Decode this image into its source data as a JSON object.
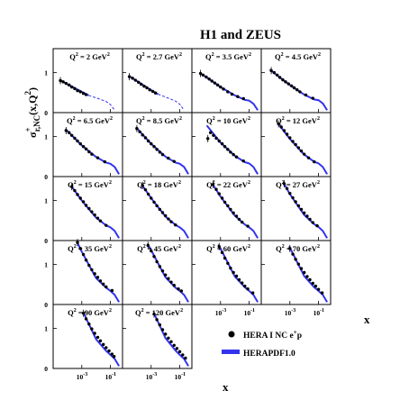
{
  "chart_data": {
    "type": "scatter",
    "title": "H1 and ZEUS",
    "ylabel": "σ+r,NC(x,Q2)",
    "xlabel": "x",
    "xscale": "log",
    "xlim": [
      1e-05,
      0.7
    ],
    "ylim": [
      0,
      1.6
    ],
    "y_ticks": [
      "0",
      "1"
    ],
    "x_ticks": [
      "10-3",
      "10-1"
    ],
    "legend": {
      "placement": "bottom-right",
      "entries": [
        {
          "marker": "dot",
          "label": "HERA I NC e+p"
        },
        {
          "marker": "line",
          "label": "HERAPDF1.0"
        }
      ]
    },
    "colors": {
      "data": "#000000",
      "fit": "#3333ee"
    },
    "panels": [
      {
        "q2": "Q2 = 2 GeV2",
        "label_main": "Q",
        "label_mid": " = 2 GeV",
        "fit_solid_until": 0.003,
        "x": [
          3.2e-05,
          5e-05,
          8e-05,
          0.00013,
          0.0002,
          0.00032,
          0.0005,
          0.0008,
          0.0013,
          0.002
        ],
        "y": [
          0.8,
          0.77,
          0.73,
          0.69,
          0.64,
          0.6,
          0.55,
          0.52,
          0.48,
          0.45
        ],
        "fit_x": [
          2.8e-05,
          0.0001,
          0.001,
          0.003,
          0.01,
          0.05,
          0.1,
          0.2
        ],
        "fit_y": [
          0.82,
          0.71,
          0.52,
          0.43,
          0.37,
          0.28,
          0.2,
          0.06
        ]
      },
      {
        "q2": "Q2 = 2.7 GeV2",
        "label_main": "Q",
        "label_mid": " = 2.7 GeV",
        "fit_solid_until": 0.003,
        "x": [
          3e-05,
          5e-05,
          8e-05,
          0.00013,
          0.0002,
          0.00032,
          0.0005,
          0.0008,
          0.0013,
          0.002
        ],
        "y": [
          0.9,
          0.86,
          0.81,
          0.76,
          0.71,
          0.66,
          0.62,
          0.57,
          0.53,
          0.49
        ],
        "fit_x": [
          2.8e-05,
          0.0001,
          0.001,
          0.003,
          0.01,
          0.05,
          0.1,
          0.2
        ],
        "fit_y": [
          0.92,
          0.79,
          0.56,
          0.46,
          0.39,
          0.29,
          0.21,
          0.06
        ]
      },
      {
        "q2": "Q2 = 3.5 GeV2",
        "label_main": "Q",
        "label_mid": " = 3.5 GeV",
        "x": [
          4e-05,
          6e-05,
          0.0001,
          0.00016,
          0.00025,
          0.0004,
          0.00063,
          0.001,
          0.0016,
          0.0032,
          0.0063,
          0.0158,
          0.04
        ],
        "y": [
          0.98,
          0.94,
          0.89,
          0.84,
          0.79,
          0.74,
          0.69,
          0.64,
          0.59,
          0.52,
          0.46,
          0.4,
          0.35
        ],
        "fit_x": [
          3.5e-05,
          0.0001,
          0.001,
          0.01,
          0.05,
          0.1,
          0.2,
          0.4
        ],
        "fit_y": [
          0.99,
          0.89,
          0.64,
          0.43,
          0.32,
          0.3,
          0.22,
          0.06
        ]
      },
      {
        "q2": "Q2 = 4.5 GeV2",
        "label_main": "Q",
        "label_mid": " = 4.5 GeV",
        "x": [
          5e-05,
          8e-05,
          0.00013,
          0.0002,
          0.00032,
          0.0005,
          0.0008,
          0.0013,
          0.002,
          0.0032,
          0.005,
          0.013,
          0.04
        ],
        "y": [
          1.05,
          1.0,
          0.94,
          0.88,
          0.82,
          0.77,
          0.72,
          0.67,
          0.62,
          0.57,
          0.52,
          0.44,
          0.36
        ],
        "fit_x": [
          4e-05,
          0.0001,
          0.001,
          0.01,
          0.05,
          0.1,
          0.2,
          0.4
        ],
        "fit_y": [
          1.08,
          0.96,
          0.69,
          0.45,
          0.33,
          0.31,
          0.23,
          0.06
        ]
      },
      {
        "q2": "Q2 = 6.5 GeV2",
        "label_main": "Q",
        "label_mid": " = 6.5 GeV",
        "x": [
          8e-05,
          0.00013,
          0.0002,
          0.00032,
          0.0005,
          0.0008,
          0.0013,
          0.002,
          0.0032,
          0.005,
          0.013,
          0.04
        ],
        "y": [
          1.15,
          1.1,
          1.03,
          0.96,
          0.89,
          0.82,
          0.75,
          0.69,
          0.62,
          0.56,
          0.47,
          0.37
        ],
        "fit_x": [
          7e-05,
          0.0001,
          0.001,
          0.01,
          0.05,
          0.1,
          0.2,
          0.4
        ],
        "fit_y": [
          1.19,
          1.14,
          0.78,
          0.49,
          0.35,
          0.32,
          0.24,
          0.06
        ]
      },
      {
        "q2": "Q2 = 8.5 GeV2",
        "label_main": "Q",
        "label_mid": " = 8.5 GeV",
        "x": [
          0.0001,
          0.00016,
          0.00025,
          0.0004,
          0.00063,
          0.001,
          0.0016,
          0.0025,
          0.004,
          0.0063,
          0.0158,
          0.04
        ],
        "y": [
          1.2,
          1.12,
          1.04,
          0.97,
          0.89,
          0.82,
          0.75,
          0.68,
          0.61,
          0.55,
          0.46,
          0.38
        ],
        "fit_x": [
          9e-05,
          0.0001,
          0.001,
          0.01,
          0.05,
          0.1,
          0.2,
          0.4
        ],
        "fit_y": [
          1.24,
          1.21,
          0.82,
          0.5,
          0.35,
          0.32,
          0.24,
          0.06
        ]
      },
      {
        "q2": "Q2 = 10 GeV2",
        "label_main": "Q",
        "label_mid": " = 10 GeV",
        "x": [
          0.00013,
          0.0002,
          0.00032,
          0.0005,
          0.0008,
          0.0013,
          0.002,
          0.0032,
          0.005,
          0.008,
          0.013,
          0.04
        ],
        "y": [
          0.95,
          1.1,
          1.03,
          0.96,
          0.89,
          0.82,
          0.75,
          0.68,
          0.61,
          0.55,
          0.49,
          0.39
        ],
        "fit_x": [
          0.00011,
          0.001,
          0.01,
          0.05,
          0.1,
          0.2,
          0.4
        ],
        "fit_y": [
          1.28,
          0.85,
          0.52,
          0.36,
          0.33,
          0.24,
          0.06
        ]
      },
      {
        "q2": "Q2 = 12 GeV2",
        "label_main": "Q",
        "label_mid": " = 12 GeV",
        "x": [
          0.00016,
          0.00025,
          0.0004,
          0.00063,
          0.001,
          0.0016,
          0.0025,
          0.004,
          0.0063,
          0.01,
          0.02,
          0.05
        ],
        "y": [
          1.32,
          1.24,
          1.15,
          1.06,
          0.97,
          0.88,
          0.8,
          0.72,
          0.64,
          0.56,
          0.47,
          0.37
        ],
        "fit_x": [
          0.00014,
          0.001,
          0.01,
          0.05,
          0.1,
          0.2,
          0.4
        ],
        "fit_y": [
          1.34,
          0.94,
          0.55,
          0.37,
          0.33,
          0.24,
          0.06
        ]
      },
      {
        "q2": "Q2 = 15 GeV2",
        "label_main": "Q",
        "label_mid": " = 15 GeV",
        "x": [
          0.0002,
          0.00032,
          0.0005,
          0.0008,
          0.0013,
          0.002,
          0.0032,
          0.005,
          0.008,
          0.013,
          0.02,
          0.05
        ],
        "y": [
          1.35,
          1.25,
          1.15,
          1.06,
          0.97,
          0.88,
          0.8,
          0.72,
          0.64,
          0.56,
          0.49,
          0.38
        ],
        "fit_x": [
          0.00018,
          0.001,
          0.01,
          0.05,
          0.1,
          0.2,
          0.4
        ],
        "fit_y": [
          1.37,
          1.0,
          0.57,
          0.38,
          0.33,
          0.24,
          0.06
        ]
      },
      {
        "q2": "Q2 = 18 GeV2",
        "label_main": "Q",
        "label_mid": " = 18 GeV",
        "x": [
          0.00025,
          0.0004,
          0.00063,
          0.001,
          0.0016,
          0.0025,
          0.004,
          0.0063,
          0.01,
          0.016,
          0.025,
          0.05
        ],
        "y": [
          1.38,
          1.27,
          1.16,
          1.06,
          0.96,
          0.87,
          0.78,
          0.7,
          0.62,
          0.54,
          0.47,
          0.39
        ],
        "fit_x": [
          0.00022,
          0.001,
          0.01,
          0.05,
          0.1,
          0.2,
          0.4
        ],
        "fit_y": [
          1.4,
          1.06,
          0.6,
          0.39,
          0.33,
          0.24,
          0.06
        ]
      },
      {
        "q2": "Q2 = 22 GeV2",
        "label_main": "Q",
        "label_mid": " = 22 GeV",
        "x": [
          0.0003,
          0.0005,
          0.0008,
          0.0013,
          0.002,
          0.0032,
          0.005,
          0.008,
          0.013,
          0.02,
          0.032,
          0.08
        ],
        "y": [
          1.4,
          1.28,
          1.17,
          1.06,
          0.96,
          0.87,
          0.78,
          0.69,
          0.61,
          0.53,
          0.46,
          0.36
        ],
        "fit_x": [
          0.00027,
          0.001,
          0.01,
          0.05,
          0.1,
          0.2,
          0.4
        ],
        "fit_y": [
          1.42,
          1.1,
          0.62,
          0.4,
          0.33,
          0.24,
          0.06
        ]
      },
      {
        "q2": "Q2 = 27 GeV2",
        "label_main": "Q",
        "label_mid": " = 27 GeV",
        "x": [
          0.0004,
          0.00063,
          0.001,
          0.0016,
          0.0025,
          0.004,
          0.0063,
          0.01,
          0.016,
          0.025,
          0.04,
          0.08
        ],
        "y": [
          1.42,
          1.3,
          1.18,
          1.07,
          0.97,
          0.87,
          0.78,
          0.69,
          0.61,
          0.53,
          0.45,
          0.37
        ],
        "fit_x": [
          0.00035,
          0.001,
          0.01,
          0.05,
          0.1,
          0.2,
          0.4
        ],
        "fit_y": [
          1.45,
          1.16,
          0.64,
          0.41,
          0.34,
          0.24,
          0.06
        ]
      },
      {
        "q2": "Q2 = 35 GeV2",
        "label_main": "Q",
        "label_mid": " = 35 GeV",
        "x": [
          0.0005,
          0.0008,
          0.0013,
          0.002,
          0.0032,
          0.005,
          0.008,
          0.013,
          0.02,
          0.032,
          0.05,
          0.13
        ],
        "y": [
          1.55,
          1.4,
          1.25,
          1.11,
          0.98,
          0.87,
          0.77,
          0.68,
          0.59,
          0.51,
          0.44,
          0.35
        ],
        "fit_x": [
          0.00045,
          0.001,
          0.01,
          0.05,
          0.1,
          0.2,
          0.4
        ],
        "fit_y": [
          1.58,
          1.32,
          0.66,
          0.42,
          0.34,
          0.24,
          0.06
        ]
      },
      {
        "q2": "Q2 = 45 GeV2",
        "label_main": "Q",
        "label_mid": " = 45 GeV",
        "x": [
          0.0006,
          0.001,
          0.0016,
          0.0025,
          0.004,
          0.0063,
          0.01,
          0.016,
          0.025,
          0.04,
          0.08,
          0.13
        ],
        "y": [
          1.48,
          1.34,
          1.2,
          1.07,
          0.95,
          0.84,
          0.74,
          0.65,
          0.56,
          0.48,
          0.39,
          0.34
        ],
        "fit_x": [
          0.00055,
          0.001,
          0.01,
          0.05,
          0.1,
          0.2,
          0.4
        ],
        "fit_y": [
          1.52,
          1.36,
          0.68,
          0.42,
          0.34,
          0.24,
          0.06
        ]
      },
      {
        "q2": "Q2 = 60 GeV2",
        "label_main": "Q",
        "label_mid": " = 60 GeV",
        "x": [
          0.0008,
          0.0013,
          0.002,
          0.0032,
          0.005,
          0.008,
          0.013,
          0.02,
          0.032,
          0.05,
          0.08,
          0.18
        ],
        "y": [
          1.45,
          1.3,
          1.16,
          1.03,
          0.91,
          0.8,
          0.71,
          0.62,
          0.54,
          0.46,
          0.39,
          0.29
        ],
        "fit_x": [
          0.0007,
          0.001,
          0.01,
          0.05,
          0.1,
          0.2,
          0.4
        ],
        "fit_y": [
          1.5,
          1.4,
          0.7,
          0.43,
          0.34,
          0.24,
          0.06
        ]
      },
      {
        "q2": "Q2 = 70 GeV2",
        "label_main": "Q",
        "label_mid": " = 70 GeV",
        "x": [
          0.001,
          0.0016,
          0.0025,
          0.004,
          0.0063,
          0.01,
          0.016,
          0.025,
          0.04,
          0.063,
          0.1,
          0.18
        ],
        "y": [
          1.4,
          1.26,
          1.13,
          1.01,
          0.9,
          0.8,
          0.7,
          0.62,
          0.53,
          0.46,
          0.38,
          0.29
        ],
        "fit_x": [
          0.0009,
          0.001,
          0.01,
          0.05,
          0.1,
          0.2,
          0.4
        ],
        "fit_y": [
          1.46,
          1.42,
          0.71,
          0.43,
          0.34,
          0.24,
          0.06
        ]
      },
      {
        "q2": "Q2 = 90 GeV2",
        "label_main": "Q",
        "label_mid": " = 90 GeV",
        "x": [
          0.0013,
          0.002,
          0.0032,
          0.005,
          0.008,
          0.013,
          0.02,
          0.032,
          0.05,
          0.08,
          0.13,
          0.18
        ],
        "y": [
          1.38,
          1.24,
          1.11,
          0.99,
          0.88,
          0.78,
          0.69,
          0.6,
          0.52,
          0.44,
          0.36,
          0.3
        ],
        "fit_x": [
          0.0012,
          0.01,
          0.05,
          0.1,
          0.2,
          0.4
        ],
        "fit_y": [
          1.42,
          0.73,
          0.44,
          0.34,
          0.24,
          0.06
        ]
      },
      {
        "q2": "Q2 = 120 GeV2",
        "label_main": "Q",
        "label_mid": " = 120 GeV",
        "x": [
          0.0016,
          0.0025,
          0.004,
          0.0063,
          0.01,
          0.016,
          0.025,
          0.04,
          0.063,
          0.1,
          0.16,
          0.25
        ],
        "y": [
          1.36,
          1.22,
          1.09,
          0.97,
          0.86,
          0.76,
          0.67,
          0.58,
          0.5,
          0.42,
          0.34,
          0.26
        ],
        "fit_x": [
          0.0015,
          0.01,
          0.05,
          0.1,
          0.2,
          0.4
        ],
        "fit_y": [
          1.4,
          0.76,
          0.45,
          0.34,
          0.24,
          0.06
        ]
      }
    ]
  }
}
